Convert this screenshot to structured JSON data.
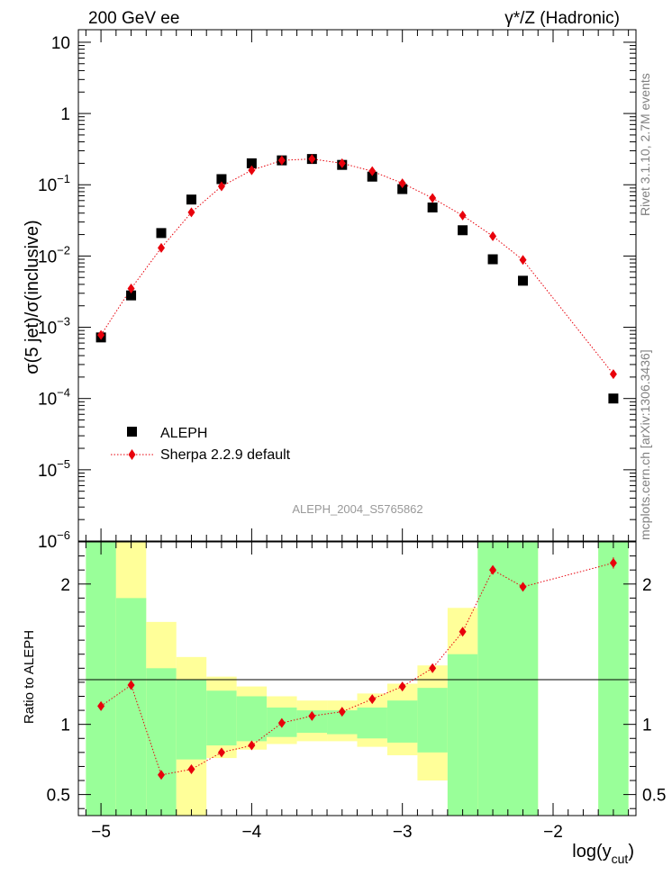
{
  "header": {
    "left": "200 GeV ee",
    "right": "γ*/Z (Hadronic)"
  },
  "side_labels": {
    "rivet": "Rivet 3.1.10, 2.7M events",
    "mcplots": "mcplots.cern.ch [arXiv:1306.3436]"
  },
  "watermark": "ALEPH_2004_S5765862",
  "colors": {
    "data": "#000000",
    "mc": "#e8000b",
    "band_inner": "#99ff99",
    "band_outer": "#ffff99"
  },
  "chart_data": [
    {
      "type": "scatter",
      "panel": "main",
      "ylabel": "σ(5 jet)/σ(inclusive)",
      "yscale": "log",
      "ylim": [
        1e-06,
        15
      ],
      "xlim": [
        -5.15,
        -1.45
      ],
      "yticks": [
        {
          "v": 10,
          "label": "10"
        },
        {
          "v": 1,
          "label": "1"
        },
        {
          "v": 0.1,
          "label": "10",
          "exp": "−1"
        },
        {
          "v": 0.01,
          "label": "10",
          "exp": "−2"
        },
        {
          "v": 0.001,
          "label": "10",
          "exp": "−3"
        },
        {
          "v": 0.0001,
          "label": "10",
          "exp": "−4"
        },
        {
          "v": 1e-05,
          "label": "10",
          "exp": "−5"
        },
        {
          "v": 1e-06,
          "label": "10",
          "exp": "−6"
        }
      ],
      "legend": {
        "position": "lower-left",
        "data_label": "ALEPH",
        "mc_label": "Sherpa 2.2.9 default"
      },
      "series": [
        {
          "name": "ALEPH",
          "style": "square",
          "x": [
            -5.0,
            -4.8,
            -4.6,
            -4.4,
            -4.2,
            -4.0,
            -3.8,
            -3.6,
            -3.4,
            -3.2,
            -3.0,
            -2.8,
            -2.6,
            -2.4,
            -2.2,
            -1.6
          ],
          "y": [
            0.00072,
            0.0028,
            0.021,
            0.062,
            0.12,
            0.2,
            0.22,
            0.23,
            0.19,
            0.13,
            0.087,
            0.048,
            0.023,
            0.009,
            0.0045,
            0.0001
          ]
        },
        {
          "name": "Sherpa 2.2.9 default",
          "style": "diamond-dotted-line",
          "x": [
            -5.0,
            -4.8,
            -4.6,
            -4.4,
            -4.2,
            -4.0,
            -3.8,
            -3.6,
            -3.4,
            -3.2,
            -3.0,
            -2.8,
            -2.6,
            -2.4,
            -2.2,
            -1.6
          ],
          "y": [
            0.00078,
            0.0035,
            0.013,
            0.041,
            0.095,
            0.16,
            0.22,
            0.23,
            0.2,
            0.155,
            0.105,
            0.065,
            0.037,
            0.019,
            0.0088,
            0.00022
          ]
        }
      ]
    },
    {
      "type": "scatter",
      "panel": "ratio",
      "ylabel": "Ratio to ALEPH",
      "xlabel": "log(y",
      "xlabel_sub": "cut",
      "xlabel_end": ")",
      "ylim": [
        0.35,
        2.3
      ],
      "xlim": [
        -5.15,
        -1.45
      ],
      "xticks": [
        {
          "v": -5,
          "label": "−5"
        },
        {
          "v": -4,
          "label": "−4"
        },
        {
          "v": -3,
          "label": "−3"
        },
        {
          "v": -2,
          "label": "−2"
        }
      ],
      "yticks": [
        {
          "v": 0.5,
          "label": "0.5"
        },
        {
          "v": 1,
          "label": "1"
        },
        {
          "v": 2,
          "label": "2"
        }
      ],
      "bands": [
        {
          "x0": -5.1,
          "x1": -4.9,
          "inner": [
            0.35,
            2.3
          ],
          "outer": [
            0.35,
            2.3
          ]
        },
        {
          "x0": -4.9,
          "x1": -4.7,
          "inner": [
            0.35,
            1.9
          ],
          "outer": [
            0.35,
            2.3
          ]
        },
        {
          "x0": -4.7,
          "x1": -4.5,
          "inner": [
            0.35,
            1.4
          ],
          "outer": [
            0.35,
            1.73
          ]
        },
        {
          "x0": -4.5,
          "x1": -4.3,
          "inner": [
            0.75,
            1.32
          ],
          "outer": [
            0.35,
            1.48
          ]
        },
        {
          "x0": -4.3,
          "x1": -4.1,
          "inner": [
            0.85,
            1.24
          ],
          "outer": [
            0.76,
            1.34
          ]
        },
        {
          "x0": -4.1,
          "x1": -3.9,
          "inner": [
            0.88,
            1.2
          ],
          "outer": [
            0.82,
            1.27
          ]
        },
        {
          "x0": -3.9,
          "x1": -3.7,
          "inner": [
            0.91,
            1.12
          ],
          "outer": [
            0.86,
            1.2
          ]
        },
        {
          "x0": -3.7,
          "x1": -3.5,
          "inner": [
            0.94,
            1.1
          ],
          "outer": [
            0.88,
            1.17
          ]
        },
        {
          "x0": -3.5,
          "x1": -3.3,
          "inner": [
            0.93,
            1.1
          ],
          "outer": [
            0.88,
            1.17
          ]
        },
        {
          "x0": -3.3,
          "x1": -3.1,
          "inner": [
            0.9,
            1.12
          ],
          "outer": [
            0.84,
            1.22
          ]
        },
        {
          "x0": -3.1,
          "x1": -2.9,
          "inner": [
            0.87,
            1.17
          ],
          "outer": [
            0.78,
            1.29
          ]
        },
        {
          "x0": -2.9,
          "x1": -2.7,
          "inner": [
            0.8,
            1.26
          ],
          "outer": [
            0.6,
            1.42
          ]
        },
        {
          "x0": -2.7,
          "x1": -2.5,
          "inner": [
            0.35,
            1.5
          ],
          "outer": [
            0.35,
            1.83
          ]
        },
        {
          "x0": -2.5,
          "x1": -2.1,
          "inner": [
            0.35,
            2.3
          ],
          "outer": [
            0.35,
            2.3
          ]
        },
        {
          "x0": -1.7,
          "x1": -1.5,
          "inner": [
            0.35,
            2.3
          ],
          "outer": [
            0.35,
            2.3
          ]
        }
      ],
      "series": [
        {
          "name": "Sherpa 2.2.9 default",
          "style": "diamond-dotted-line",
          "x": [
            -5.0,
            -4.8,
            -4.6,
            -4.4,
            -4.2,
            -4.0,
            -3.8,
            -3.6,
            -3.4,
            -3.2,
            -3.0,
            -2.8,
            -2.6,
            -2.4,
            -2.2,
            -1.6
          ],
          "y": [
            1.13,
            1.28,
            0.64,
            0.68,
            0.8,
            0.85,
            1.01,
            1.06,
            1.09,
            1.18,
            1.27,
            1.4,
            1.66,
            2.1,
            1.98,
            2.15
          ],
          "yerr": [
            0.02,
            0.02,
            0.02,
            0.02,
            0.02,
            0.02,
            0.02,
            0.02,
            0.02,
            0.02,
            0.02,
            0.02,
            0.02,
            0.03,
            0.02,
            0.04
          ]
        }
      ]
    }
  ]
}
